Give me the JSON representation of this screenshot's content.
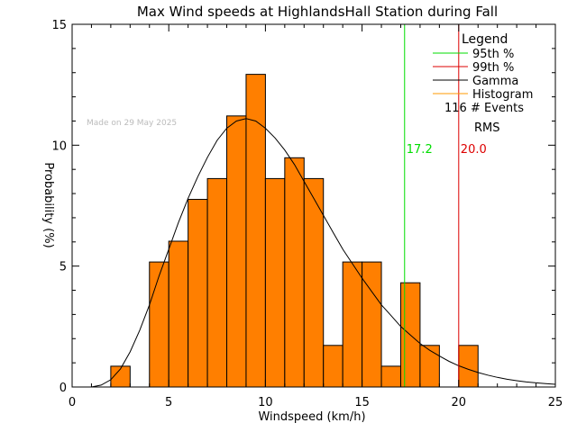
{
  "chart_data": {
    "type": "bar",
    "title": "Max Wind speeds at HighlandsHall Station during Fall",
    "xlabel": "Windspeed (km/h)",
    "ylabel": "Probability (%)",
    "xlim": [
      0,
      25
    ],
    "ylim": [
      0,
      15
    ],
    "x_ticks": [
      0,
      5,
      10,
      15,
      20,
      25
    ],
    "y_ticks": [
      0,
      5,
      10,
      15
    ],
    "watermark": "Made on 29 May 2025",
    "histogram": {
      "bin_width": 1,
      "color": "#ff7f00",
      "bins": [
        {
          "x0": 2,
          "value": 0.86
        },
        {
          "x0": 3,
          "value": 0
        },
        {
          "x0": 4,
          "value": 5.17
        },
        {
          "x0": 5,
          "value": 6.03
        },
        {
          "x0": 6,
          "value": 7.76
        },
        {
          "x0": 7,
          "value": 8.62
        },
        {
          "x0": 8,
          "value": 11.21
        },
        {
          "x0": 9,
          "value": 12.93
        },
        {
          "x0": 10,
          "value": 8.62
        },
        {
          "x0": 11,
          "value": 9.48
        },
        {
          "x0": 12,
          "value": 8.62
        },
        {
          "x0": 13,
          "value": 1.72
        },
        {
          "x0": 14,
          "value": 5.17
        },
        {
          "x0": 15,
          "value": 5.17
        },
        {
          "x0": 16,
          "value": 0.86
        },
        {
          "x0": 17,
          "value": 4.31
        },
        {
          "x0": 18,
          "value": 1.72
        },
        {
          "x0": 19,
          "value": 0
        },
        {
          "x0": 20,
          "value": 1.72
        }
      ]
    },
    "gamma_curve": {
      "color": "#000000",
      "x": [
        1,
        1.5,
        2,
        2.5,
        3,
        3.5,
        4,
        4.5,
        5,
        5.5,
        6,
        6.5,
        7,
        7.5,
        8,
        8.5,
        9,
        9.5,
        10,
        10.5,
        11,
        11.5,
        12,
        12.5,
        13,
        13.5,
        14,
        14.5,
        15,
        15.5,
        16,
        16.5,
        17,
        17.5,
        18,
        18.5,
        19,
        19.5,
        20,
        20.5,
        21,
        21.5,
        22,
        22.5,
        23,
        23.5,
        24,
        24.5,
        25
      ],
      "y": [
        0.0,
        0.08,
        0.3,
        0.75,
        1.45,
        2.35,
        3.4,
        4.6,
        5.7,
        6.8,
        7.8,
        8.7,
        9.5,
        10.2,
        10.7,
        11.0,
        11.1,
        11.0,
        10.7,
        10.3,
        9.8,
        9.2,
        8.5,
        7.8,
        7.1,
        6.4,
        5.7,
        5.1,
        4.5,
        3.95,
        3.4,
        2.95,
        2.5,
        2.15,
        1.8,
        1.52,
        1.28,
        1.06,
        0.88,
        0.73,
        0.6,
        0.49,
        0.4,
        0.32,
        0.26,
        0.21,
        0.17,
        0.14,
        0.11
      ]
    },
    "vlines": [
      {
        "name": "95th %",
        "x": 17.2,
        "label": "17.2",
        "color": "#00dd00"
      },
      {
        "name": "99th %",
        "x": 20.0,
        "label": "20.0",
        "color": "#dd0000"
      }
    ],
    "legend": {
      "title": "Legend",
      "placement": "top-right",
      "entries": [
        {
          "label": "95th %",
          "color": "#00dd00"
        },
        {
          "label": "99th %",
          "color": "#dd0000"
        },
        {
          "label": "Gamma",
          "color": "#000000"
        },
        {
          "label": "Histogram",
          "color": "#ff9900"
        }
      ],
      "events_count": "116",
      "events_label": "# Events",
      "rms_label": "RMS"
    }
  }
}
